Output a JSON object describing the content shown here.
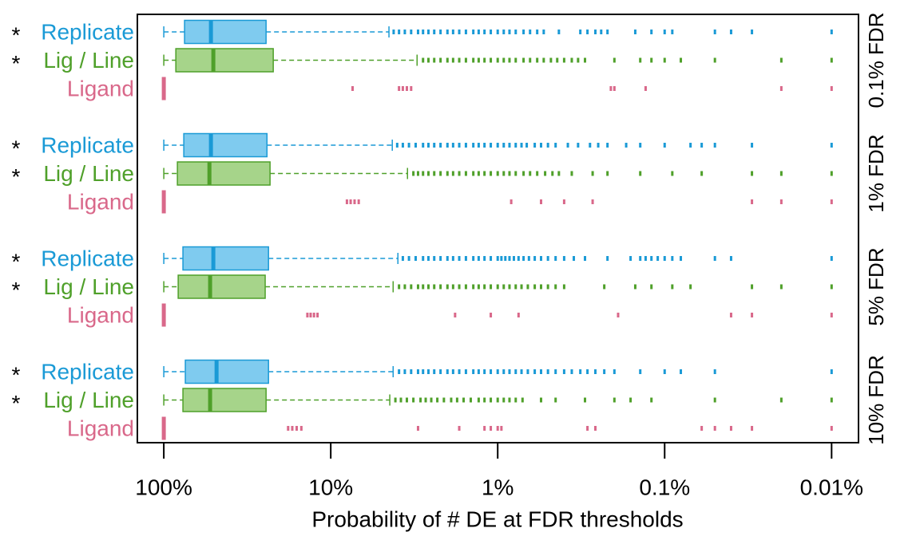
{
  "chart_data": {
    "type": "boxplot",
    "xlabel": "Probability of # DE at FDR thresholds",
    "xscale": "log",
    "xlim": [
      144,
      0.0069
    ],
    "xticks": [
      {
        "value": 100,
        "label": "100%"
      },
      {
        "value": 10,
        "label": "10%"
      },
      {
        "value": 1,
        "label": "1%"
      },
      {
        "value": 0.1,
        "label": "0.1%"
      },
      {
        "value": 0.01,
        "label": "0.01%"
      }
    ],
    "series": [
      {
        "name": "Replicate",
        "marker": "*",
        "color": "#1a9ad6",
        "fill": "#7fcbef"
      },
      {
        "name": "Lig / Line",
        "marker": "*",
        "color": "#4fa02a",
        "fill": "#a6d48a"
      },
      {
        "name": "Ligand",
        "color": "#d9688a",
        "fill": "#f0b3c5"
      }
    ],
    "panels": [
      {
        "label": "0.1% FDR",
        "boxes": [
          {
            "min": 4.48,
            "q1": 24.4,
            "median": 52.2,
            "q3": 75.1,
            "max": 100,
            "fliers": [
              4.2,
              3.9,
              3.6,
              3.3,
              3.0,
              2.8,
              2.6,
              2.4,
              2.2,
              2.0,
              1.85,
              1.7,
              1.55,
              1.4,
              1.3,
              1.2,
              1.1,
              1.0,
              0.92,
              0.85,
              0.78,
              0.7,
              0.64,
              0.58,
              0.53,
              0.43,
              0.32,
              0.29,
              0.26,
              0.24,
              0.22,
              0.15,
              0.12,
              0.1,
              0.09,
              0.05,
              0.04,
              0.03,
              0.01
            ]
          },
          {
            "min": 3.04,
            "q1": 22.1,
            "median": 50.5,
            "q3": 84.7,
            "max": 100,
            "fliers": [
              2.8,
              2.6,
              2.4,
              2.2,
              2.0,
              1.85,
              1.7,
              1.55,
              1.4,
              1.3,
              1.2,
              1.1,
              1.0,
              0.92,
              0.85,
              0.78,
              0.7,
              0.64,
              0.58,
              0.53,
              0.48,
              0.44,
              0.4,
              0.36,
              0.33,
              0.3,
              0.2,
              0.14,
              0.12,
              0.1,
              0.08,
              0.05,
              0.02,
              0.01
            ]
          },
          {
            "min": 100,
            "q1": 100,
            "median": 100,
            "q3": 100,
            "max": 100,
            "fliers": [
              7.4,
              3.9,
              3.7,
              3.5,
              3.3,
              0.21,
              0.2,
              0.13,
              0.02,
              0.01
            ]
          }
        ]
      },
      {
        "label": "1% FDR",
        "boxes": [
          {
            "min": 4.28,
            "q1": 24.1,
            "median": 52.2,
            "q3": 75.9,
            "max": 100,
            "fliers": [
              4.0,
              3.7,
              3.4,
              3.1,
              2.8,
              2.6,
              2.4,
              2.2,
              2.0,
              1.85,
              1.7,
              1.55,
              1.4,
              1.3,
              1.2,
              1.1,
              1.0,
              0.92,
              0.85,
              0.78,
              0.72,
              0.67,
              0.6,
              0.55,
              0.5,
              0.45,
              0.38,
              0.33,
              0.28,
              0.25,
              0.22,
              0.17,
              0.14,
              0.1,
              0.07,
              0.06,
              0.05,
              0.03,
              0.01
            ]
          },
          {
            "min": 3.47,
            "q1": 23.1,
            "median": 53.3,
            "q3": 82.9,
            "max": 100,
            "fliers": [
              3.2,
              3.0,
              2.8,
              2.6,
              2.4,
              2.2,
              2.0,
              1.85,
              1.7,
              1.55,
              1.4,
              1.3,
              1.2,
              1.1,
              1.0,
              0.92,
              0.85,
              0.78,
              0.7,
              0.64,
              0.58,
              0.52,
              0.47,
              0.43,
              0.36,
              0.27,
              0.22,
              0.14,
              0.09,
              0.06,
              0.03,
              0.02,
              0.01
            ]
          },
          {
            "min": 100,
            "q1": 100,
            "median": 100,
            "q3": 100,
            "max": 100,
            "fliers": [
              8.0,
              7.6,
              7.2,
              6.8,
              0.83,
              0.55,
              0.4,
              0.27,
              0.03,
              0.02,
              0.01
            ]
          }
        ]
      },
      {
        "label": "5% FDR",
        "boxes": [
          {
            "min": 3.96,
            "q1": 23.6,
            "median": 50.5,
            "q3": 76.8,
            "max": 100,
            "fliers": [
              3.7,
              3.4,
              3.1,
              2.8,
              2.6,
              2.4,
              2.2,
              2.0,
              1.85,
              1.7,
              1.55,
              1.4,
              1.3,
              1.2,
              1.1,
              1.0,
              0.95,
              0.9,
              0.85,
              0.8,
              0.75,
              0.7,
              0.65,
              0.6,
              0.55,
              0.5,
              0.45,
              0.4,
              0.35,
              0.3,
              0.22,
              0.16,
              0.14,
              0.13,
              0.12,
              0.11,
              0.1,
              0.09,
              0.08,
              0.05,
              0.04,
              0.01
            ]
          },
          {
            "min": 4.23,
            "q1": 24.7,
            "median": 52.8,
            "q3": 82.0,
            "max": 100,
            "fliers": [
              3.9,
              3.6,
              3.3,
              3.0,
              2.8,
              2.6,
              2.4,
              2.2,
              2.0,
              1.85,
              1.7,
              1.55,
              1.4,
              1.3,
              1.2,
              1.1,
              1.0,
              0.92,
              0.85,
              0.78,
              0.72,
              0.66,
              0.6,
              0.55,
              0.5,
              0.45,
              0.4,
              0.23,
              0.15,
              0.12,
              0.09,
              0.07,
              0.03,
              0.02,
              0.01
            ]
          },
          {
            "min": 100,
            "q1": 100,
            "median": 100,
            "q3": 100,
            "max": 100,
            "fliers": [
              13.8,
              13.2,
              12.6,
              12.0,
              1.8,
              1.1,
              0.75,
              0.19,
              0.04,
              0.03,
              0.01
            ]
          }
        ]
      },
      {
        "label": "10% FDR",
        "boxes": [
          {
            "min": 4.23,
            "q1": 23.6,
            "median": 48.3,
            "q3": 74.3,
            "max": 100,
            "fliers": [
              3.9,
              3.6,
              3.3,
              3.0,
              2.8,
              2.6,
              2.4,
              2.2,
              2.0,
              1.85,
              1.7,
              1.55,
              1.4,
              1.3,
              1.2,
              1.1,
              1.0,
              0.92,
              0.85,
              0.78,
              0.72,
              0.66,
              0.6,
              0.55,
              0.5,
              0.45,
              0.4,
              0.36,
              0.32,
              0.29,
              0.26,
              0.23,
              0.2,
              0.14,
              0.1,
              0.08,
              0.05,
              0.01
            ]
          },
          {
            "min": 4.43,
            "q1": 24.4,
            "median": 52.8,
            "q3": 76.8,
            "max": 100,
            "fliers": [
              4.1,
              3.8,
              3.5,
              3.2,
              2.9,
              2.7,
              2.5,
              2.3,
              2.1,
              1.9,
              1.75,
              1.6,
              1.45,
              1.3,
              1.2,
              1.1,
              1.0,
              0.92,
              0.85,
              0.78,
              0.71,
              0.55,
              0.45,
              0.3,
              0.2,
              0.16,
              0.12,
              0.05,
              0.02,
              0.01
            ]
          },
          {
            "min": 100,
            "q1": 100,
            "median": 100,
            "q3": 100,
            "max": 100,
            "fliers": [
              18.0,
              17.0,
              16.0,
              15.0,
              3.0,
              1.7,
              1.2,
              1.1,
              1.0,
              0.95,
              0.29,
              0.26,
              0.06,
              0.05,
              0.04,
              0.03,
              0.01
            ]
          }
        ]
      }
    ]
  }
}
